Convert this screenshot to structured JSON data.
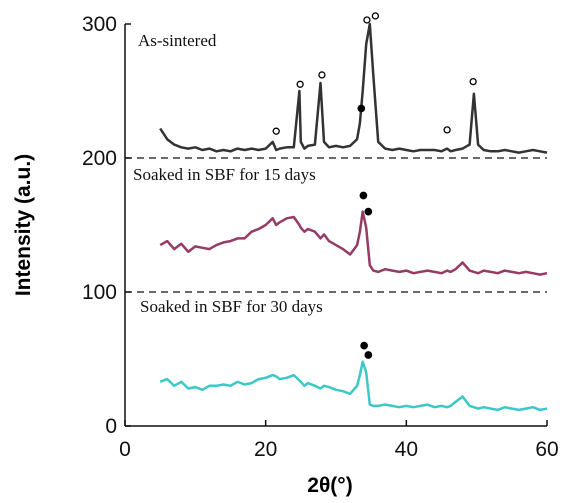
{
  "chart_data": {
    "type": "line",
    "xlabel": "2θ(°)",
    "ylabel": "Intensity (a.u.)",
    "annotations": [
      "As-sintered",
      "Soaked in SBF for 15 days",
      "Soaked in SBF for 30 days"
    ],
    "xlim": [
      0,
      60
    ],
    "xticks": [
      0,
      20,
      40,
      60
    ],
    "ylim": [
      0,
      300
    ],
    "yticks": [
      0,
      100,
      200,
      300
    ],
    "hlines": [
      200,
      100
    ],
    "x": [
      5,
      6,
      7,
      8,
      9,
      10,
      11,
      12,
      13,
      14,
      15,
      16,
      17,
      18,
      19,
      20,
      21,
      21.5,
      22,
      23,
      24,
      24.8,
      25,
      25.5,
      26,
      27,
      27.8,
      28.3,
      29,
      30,
      31,
      32,
      33,
      33.4,
      33.8,
      34.3,
      34.8,
      35.3,
      36,
      37,
      38,
      39,
      40,
      41,
      42,
      43,
      44,
      45,
      45.8,
      46.3,
      47,
      48,
      49,
      49.6,
      50.2,
      51,
      52,
      53,
      54,
      55,
      56,
      57,
      58,
      59,
      60
    ],
    "series": [
      {
        "color": "#333333",
        "values": [
          222,
          214,
          210,
          208,
          207,
          208,
          206,
          207,
          205,
          206,
          205,
          207,
          206,
          207,
          206,
          207,
          212,
          206,
          207,
          208,
          208,
          250,
          212,
          207,
          209,
          210,
          256,
          212,
          208,
          209,
          208,
          209,
          214,
          226,
          250,
          285,
          300,
          262,
          212,
          207,
          206,
          207,
          206,
          205,
          206,
          206,
          206,
          205,
          207,
          205,
          206,
          207,
          210,
          248,
          210,
          206,
          205,
          205,
          206,
          205,
          204,
          205,
          206,
          205,
          204
        ]
      },
      {
        "color": "#963a66",
        "values": [
          135,
          138,
          132,
          136,
          130,
          134,
          133,
          132,
          135,
          137,
          138,
          140,
          140,
          145,
          147,
          150,
          155,
          150,
          152,
          155,
          156,
          150,
          148,
          145,
          147,
          145,
          140,
          143,
          138,
          135,
          132,
          128,
          135,
          145,
          160,
          148,
          120,
          116,
          115,
          117,
          116,
          115,
          116,
          114,
          115,
          116,
          115,
          114,
          116,
          115,
          117,
          122,
          116,
          115,
          114,
          116,
          115,
          114,
          116,
          115,
          114,
          115,
          114,
          113,
          114
        ]
      },
      {
        "color": "#3cc8c6",
        "values": [
          33,
          35,
          30,
          33,
          28,
          29,
          27,
          30,
          30,
          31,
          30,
          33,
          31,
          32,
          35,
          36,
          38,
          37,
          35,
          36,
          38,
          34,
          33,
          30,
          32,
          30,
          28,
          30,
          29,
          27,
          26,
          24,
          30,
          38,
          48,
          40,
          16,
          15,
          15,
          16,
          15,
          14,
          15,
          14,
          15,
          16,
          14,
          15,
          14,
          15,
          18,
          22,
          15,
          14,
          13,
          14,
          13,
          12,
          14,
          13,
          12,
          13,
          14,
          12,
          13
        ]
      }
    ],
    "markers": [
      {
        "x": 21.5,
        "y": 220,
        "kind": "open"
      },
      {
        "x": 24.9,
        "y": 255,
        "kind": "open"
      },
      {
        "x": 28,
        "y": 262,
        "kind": "open"
      },
      {
        "x": 34.4,
        "y": 303,
        "kind": "open"
      },
      {
        "x": 35.6,
        "y": 306,
        "kind": "open"
      },
      {
        "x": 45.8,
        "y": 221,
        "kind": "open"
      },
      {
        "x": 49.5,
        "y": 257,
        "kind": "open"
      },
      {
        "x": 33.6,
        "y": 237,
        "kind": "filled"
      },
      {
        "x": 33.9,
        "y": 172,
        "kind": "filled"
      },
      {
        "x": 34.6,
        "y": 160,
        "kind": "filled"
      },
      {
        "x": 34,
        "y": 60,
        "kind": "filled"
      },
      {
        "x": 34.6,
        "y": 53,
        "kind": "filled"
      }
    ]
  }
}
